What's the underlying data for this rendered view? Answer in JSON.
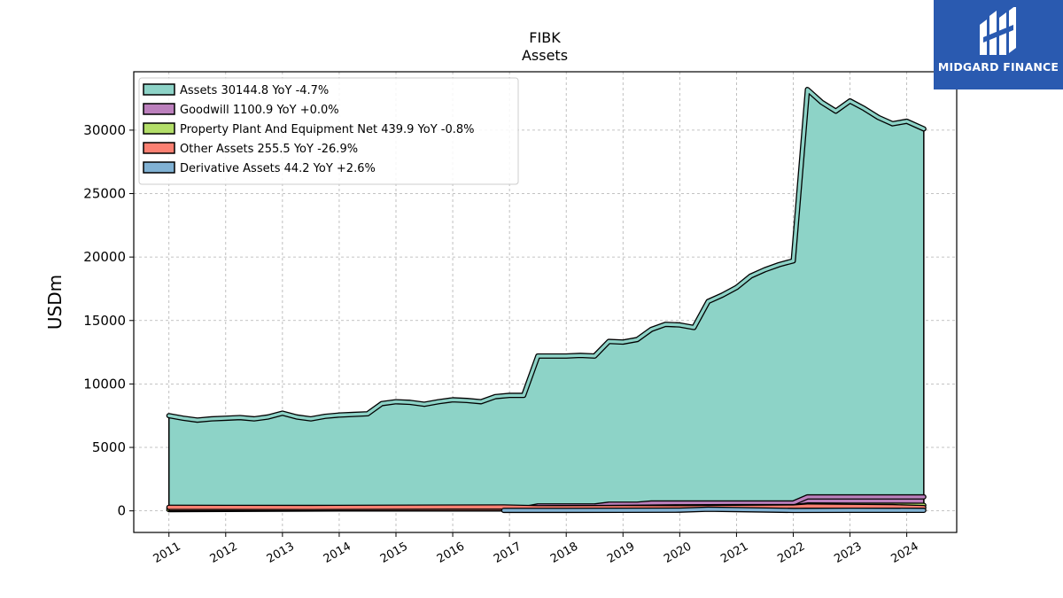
{
  "header": {
    "ticker": "FIBK",
    "subtitle": "Assets"
  },
  "brand": {
    "name": "MIDGARD FINANCE",
    "color": "#2a5ab0"
  },
  "chart_data": {
    "type": "area",
    "title": "FIBK",
    "subtitle": "Assets",
    "xlabel": "",
    "ylabel": "USDm",
    "ylim": [
      -1700,
      34600
    ],
    "xlim": [
      2010.38,
      2024.88
    ],
    "yticks": [
      0,
      5000,
      10000,
      15000,
      20000,
      25000,
      30000
    ],
    "xticks": [
      "2011",
      "2012",
      "2013",
      "2014",
      "2015",
      "2016",
      "2017",
      "2018",
      "2019",
      "2020",
      "2021",
      "2022",
      "2023",
      "2024"
    ],
    "grid": true,
    "legend_position": "top-left",
    "series": [
      {
        "name": "Assets",
        "legend_label": "Assets  30144.8 YoY -4.7%",
        "color": "#8dd3c7",
        "points": [
          [
            2011.0,
            7500
          ],
          [
            2011.25,
            7300
          ],
          [
            2011.5,
            7150
          ],
          [
            2011.75,
            7250
          ],
          [
            2012.0,
            7300
          ],
          [
            2012.25,
            7350
          ],
          [
            2012.5,
            7250
          ],
          [
            2012.75,
            7400
          ],
          [
            2013.0,
            7700
          ],
          [
            2013.25,
            7400
          ],
          [
            2013.5,
            7250
          ],
          [
            2013.75,
            7450
          ],
          [
            2014.0,
            7550
          ],
          [
            2014.25,
            7600
          ],
          [
            2014.5,
            7650
          ],
          [
            2014.75,
            8450
          ],
          [
            2015.0,
            8600
          ],
          [
            2015.25,
            8550
          ],
          [
            2015.5,
            8400
          ],
          [
            2015.75,
            8600
          ],
          [
            2016.0,
            8750
          ],
          [
            2016.25,
            8700
          ],
          [
            2016.5,
            8600
          ],
          [
            2016.75,
            9000
          ],
          [
            2017.0,
            9100
          ],
          [
            2017.25,
            9100
          ],
          [
            2017.5,
            12200
          ],
          [
            2017.75,
            12200
          ],
          [
            2018.0,
            12200
          ],
          [
            2018.25,
            12250
          ],
          [
            2018.5,
            12200
          ],
          [
            2018.75,
            13350
          ],
          [
            2019.0,
            13300
          ],
          [
            2019.25,
            13500
          ],
          [
            2019.5,
            14300
          ],
          [
            2019.75,
            14700
          ],
          [
            2020.0,
            14650
          ],
          [
            2020.25,
            14450
          ],
          [
            2020.5,
            16500
          ],
          [
            2020.75,
            17000
          ],
          [
            2021.0,
            17600
          ],
          [
            2021.25,
            18500
          ],
          [
            2021.5,
            19000
          ],
          [
            2021.75,
            19400
          ],
          [
            2022.0,
            19700
          ],
          [
            2022.25,
            33200
          ],
          [
            2022.5,
            32200
          ],
          [
            2022.75,
            31500
          ],
          [
            2023.0,
            32300
          ],
          [
            2023.25,
            31700
          ],
          [
            2023.5,
            31000
          ],
          [
            2023.75,
            30500
          ],
          [
            2024.0,
            30700
          ],
          [
            2024.3,
            30100
          ]
        ]
      },
      {
        "name": "Goodwill",
        "legend_label": "Goodwill  1100.9 YoY +0.0%",
        "color": "#bc80bd",
        "points": [
          [
            2011.0,
            180
          ],
          [
            2016.75,
            180
          ],
          [
            2017.25,
            180
          ],
          [
            2017.5,
            385
          ],
          [
            2018.5,
            385
          ],
          [
            2018.75,
            525
          ],
          [
            2019.25,
            525
          ],
          [
            2019.5,
            620
          ],
          [
            2021.75,
            620
          ],
          [
            2022.0,
            620
          ],
          [
            2022.25,
            1100
          ],
          [
            2024.3,
            1100
          ]
        ]
      },
      {
        "name": "Property Plant And Equipment Net",
        "legend_label": "Property Plant And Equipment Net  439.9 YoY -0.8%",
        "color": "#b3de69",
        "points": [
          [
            2011.0,
            100
          ],
          [
            2017.0,
            200
          ],
          [
            2018.0,
            240
          ],
          [
            2019.0,
            270
          ],
          [
            2020.0,
            320
          ],
          [
            2021.0,
            330
          ],
          [
            2022.0,
            330
          ],
          [
            2022.25,
            460
          ],
          [
            2023.0,
            450
          ],
          [
            2024.3,
            440
          ]
        ]
      },
      {
        "name": "Other Assets",
        "legend_label": "Other Assets  255.5 YoY -26.9%",
        "color": "#fb8072",
        "points": [
          [
            2011.0,
            280
          ],
          [
            2013.5,
            270
          ],
          [
            2016.0,
            300
          ],
          [
            2016.9,
            310
          ],
          [
            2017.5,
            250
          ],
          [
            2019.0,
            260
          ],
          [
            2020.0,
            250
          ],
          [
            2022.0,
            300
          ],
          [
            2022.25,
            380
          ],
          [
            2023.0,
            350
          ],
          [
            2023.75,
            330
          ],
          [
            2024.3,
            255
          ]
        ]
      },
      {
        "name": "Derivative Assets",
        "legend_label": "Derivative Assets  44.2 YoY +2.6%",
        "color": "#80b1d3",
        "points": [
          [
            2016.9,
            40
          ],
          [
            2018.0,
            40
          ],
          [
            2019.0,
            45
          ],
          [
            2020.0,
            55
          ],
          [
            2020.5,
            130
          ],
          [
            2021.0,
            100
          ],
          [
            2022.0,
            35
          ],
          [
            2023.0,
            45
          ],
          [
            2024.3,
            44
          ]
        ]
      }
    ]
  }
}
